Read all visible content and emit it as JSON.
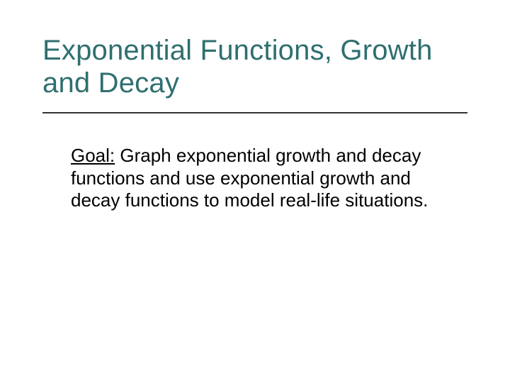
{
  "slide": {
    "title": "Exponential Functions, Growth and Decay",
    "title_color": "#2f6f6f",
    "title_fontsize": 40,
    "rule_color": "#333333",
    "goal_label": "Goal:",
    "goal_text": " Graph exponential growth and decay functions and use exponential growth and decay functions to model real-life situations.",
    "body_fontsize": 26,
    "body_color": "#000000",
    "background_color": "#ffffff"
  }
}
